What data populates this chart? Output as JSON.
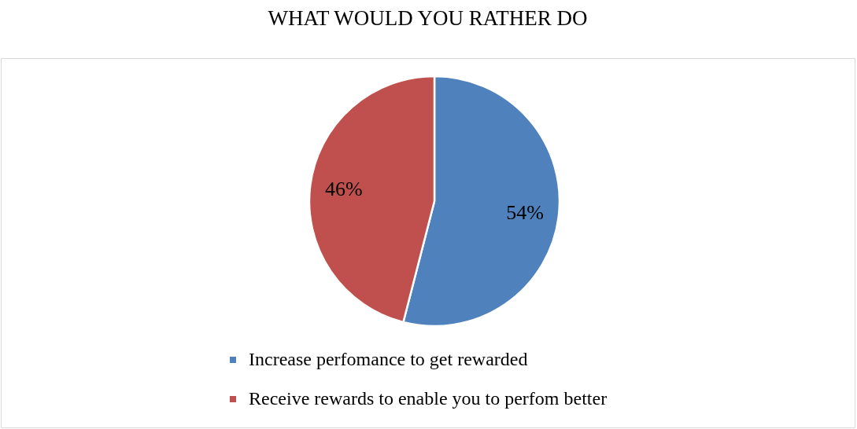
{
  "chart_data": {
    "type": "pie",
    "title": "WHAT WOULD YOU RATHER DO",
    "categories": [
      "Increase perfomance to get rewarded",
      "Receive rewards to enable you to perfom better"
    ],
    "values": [
      54,
      46
    ],
    "colors": [
      "#4f81bd",
      "#c0504d"
    ],
    "value_labels": [
      "54%",
      "46%"
    ],
    "legend": "bottom"
  }
}
